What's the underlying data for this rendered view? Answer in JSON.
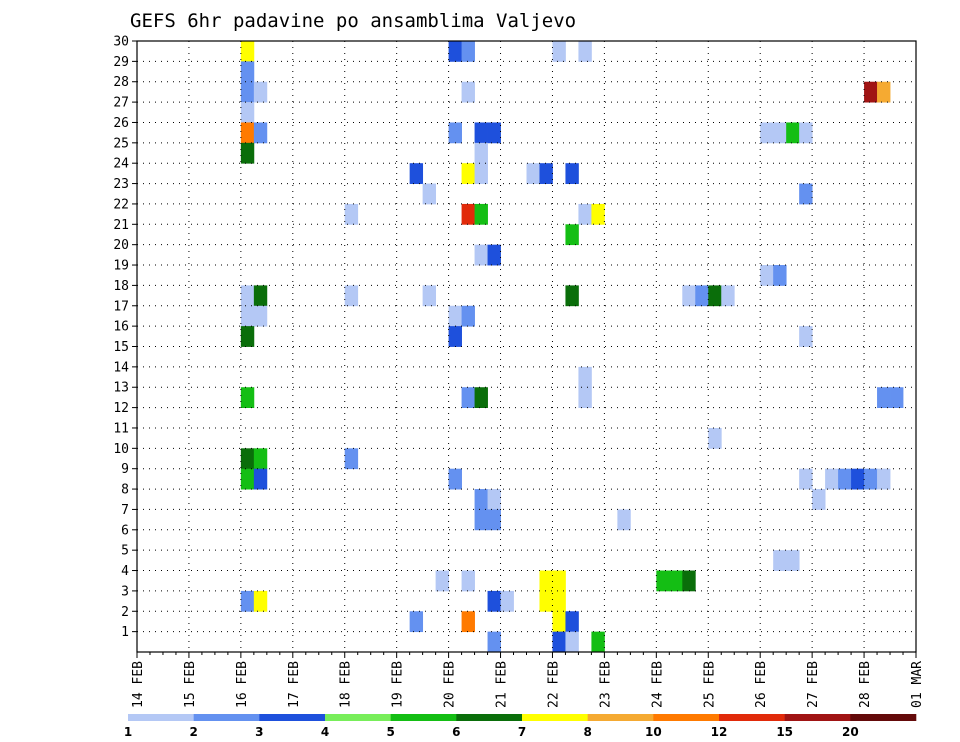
{
  "chart_data": {
    "type": "heatmap",
    "title": "GEFS 6hr padavine po ansamblima Valjevo",
    "xlabel": "",
    "ylabel": "",
    "x_tick_labels": [
      "14 FEB",
      "15 FEB",
      "16 FEB",
      "17 FEB",
      "18 FEB",
      "19 FEB",
      "20 FEB",
      "21 FEB",
      "22 FEB",
      "23 FEB",
      "24 FEB",
      "25 FEB",
      "26 FEB",
      "27 FEB",
      "28 FEB",
      "01 MAR"
    ],
    "y_tick_labels": [
      "1",
      "2",
      "3",
      "4",
      "5",
      "6",
      "7",
      "8",
      "9",
      "10",
      "11",
      "12",
      "13",
      "14",
      "15",
      "16",
      "17",
      "18",
      "19",
      "20",
      "21",
      "22",
      "23",
      "24",
      "25",
      "26",
      "27",
      "28",
      "29",
      "30"
    ],
    "x_unit": "days since 14 FEB, 6-hour steps",
    "xlim": [
      0,
      15
    ],
    "ylim": [
      0,
      30
    ],
    "grid": true,
    "legend": {
      "placement": "bottom",
      "labels": [
        "1",
        "2",
        "3",
        "4",
        "5",
        "6",
        "7",
        "8",
        "10",
        "12",
        "15",
        "20"
      ],
      "colors": [
        "#b4c8f5",
        "#6491f0",
        "#1e50dc",
        "#78ee5a",
        "#14be14",
        "#0a6e0a",
        "#ffff00",
        "#f5aa32",
        "#ff7a00",
        "#e12a0a",
        "#a01414",
        "#640a0a"
      ]
    },
    "cells": [
      {
        "x": 2.0,
        "y": 30,
        "v": 7
      },
      {
        "x": 6.0,
        "y": 30,
        "v": 3
      },
      {
        "x": 6.25,
        "y": 30,
        "v": 2
      },
      {
        "x": 8.0,
        "y": 30,
        "v": 1
      },
      {
        "x": 8.5,
        "y": 30,
        "v": 1
      },
      {
        "x": 2.0,
        "y": 29,
        "v": 2
      },
      {
        "x": 2.0,
        "y": 28,
        "v": 2
      },
      {
        "x": 2.25,
        "y": 28,
        "v": 1
      },
      {
        "x": 6.25,
        "y": 28,
        "v": 1
      },
      {
        "x": 14.0,
        "y": 28,
        "v": 15
      },
      {
        "x": 14.25,
        "y": 28,
        "v": 8
      },
      {
        "x": 2.0,
        "y": 27,
        "v": 1
      },
      {
        "x": 2.0,
        "y": 26,
        "v": 10
      },
      {
        "x": 2.25,
        "y": 26,
        "v": 2
      },
      {
        "x": 6.0,
        "y": 26,
        "v": 2
      },
      {
        "x": 6.5,
        "y": 26,
        "v": 3
      },
      {
        "x": 6.75,
        "y": 26,
        "v": 3
      },
      {
        "x": 12.0,
        "y": 26,
        "v": 1
      },
      {
        "x": 12.25,
        "y": 26,
        "v": 1
      },
      {
        "x": 12.5,
        "y": 26,
        "v": 5
      },
      {
        "x": 12.75,
        "y": 26,
        "v": 1
      },
      {
        "x": 2.0,
        "y": 25,
        "v": 6
      },
      {
        "x": 6.5,
        "y": 25,
        "v": 1
      },
      {
        "x": 5.25,
        "y": 24,
        "v": 3
      },
      {
        "x": 6.25,
        "y": 24,
        "v": 7
      },
      {
        "x": 6.5,
        "y": 24,
        "v": 1
      },
      {
        "x": 7.5,
        "y": 24,
        "v": 1
      },
      {
        "x": 7.75,
        "y": 24,
        "v": 3
      },
      {
        "x": 8.25,
        "y": 24,
        "v": 3
      },
      {
        "x": 5.5,
        "y": 23,
        "v": 1
      },
      {
        "x": 12.75,
        "y": 23,
        "v": 2
      },
      {
        "x": 4.0,
        "y": 22,
        "v": 1
      },
      {
        "x": 6.25,
        "y": 22,
        "v": 12
      },
      {
        "x": 6.5,
        "y": 22,
        "v": 5
      },
      {
        "x": 8.5,
        "y": 22,
        "v": 1
      },
      {
        "x": 8.75,
        "y": 22,
        "v": 7
      },
      {
        "x": 8.25,
        "y": 21,
        "v": 5
      },
      {
        "x": 6.5,
        "y": 20,
        "v": 1
      },
      {
        "x": 6.75,
        "y": 20,
        "v": 3
      },
      {
        "x": 12.0,
        "y": 19,
        "v": 1
      },
      {
        "x": 12.25,
        "y": 19,
        "v": 2
      },
      {
        "x": 2.0,
        "y": 18,
        "v": 1
      },
      {
        "x": 2.25,
        "y": 18,
        "v": 6
      },
      {
        "x": 4.0,
        "y": 18,
        "v": 1
      },
      {
        "x": 5.5,
        "y": 18,
        "v": 1
      },
      {
        "x": 8.25,
        "y": 18,
        "v": 6
      },
      {
        "x": 10.5,
        "y": 18,
        "v": 1
      },
      {
        "x": 10.75,
        "y": 18,
        "v": 2
      },
      {
        "x": 11.0,
        "y": 18,
        "v": 6
      },
      {
        "x": 11.25,
        "y": 18,
        "v": 1
      },
      {
        "x": 2.0,
        "y": 17,
        "v": 1
      },
      {
        "x": 2.25,
        "y": 17,
        "v": 1
      },
      {
        "x": 6.0,
        "y": 17,
        "v": 1
      },
      {
        "x": 6.25,
        "y": 17,
        "v": 2
      },
      {
        "x": 2.0,
        "y": 16,
        "v": 6
      },
      {
        "x": 6.0,
        "y": 16,
        "v": 3
      },
      {
        "x": 12.75,
        "y": 16,
        "v": 1
      },
      {
        "x": 8.5,
        "y": 14,
        "v": 1
      },
      {
        "x": 2.0,
        "y": 13,
        "v": 5
      },
      {
        "x": 6.25,
        "y": 13,
        "v": 2
      },
      {
        "x": 6.5,
        "y": 13,
        "v": 6
      },
      {
        "x": 8.5,
        "y": 13,
        "v": 1
      },
      {
        "x": 14.25,
        "y": 13,
        "v": 2
      },
      {
        "x": 14.5,
        "y": 13,
        "v": 2
      },
      {
        "x": 11.0,
        "y": 11,
        "v": 1
      },
      {
        "x": 2.0,
        "y": 10,
        "v": 6
      },
      {
        "x": 2.25,
        "y": 10,
        "v": 5
      },
      {
        "x": 4.0,
        "y": 10,
        "v": 2
      },
      {
        "x": 2.0,
        "y": 9,
        "v": 5
      },
      {
        "x": 2.25,
        "y": 9,
        "v": 3
      },
      {
        "x": 6.0,
        "y": 9,
        "v": 2
      },
      {
        "x": 12.75,
        "y": 9,
        "v": 1
      },
      {
        "x": 13.25,
        "y": 9,
        "v": 1
      },
      {
        "x": 13.5,
        "y": 9,
        "v": 2
      },
      {
        "x": 13.75,
        "y": 9,
        "v": 3
      },
      {
        "x": 14.0,
        "y": 9,
        "v": 2
      },
      {
        "x": 14.25,
        "y": 9,
        "v": 1
      },
      {
        "x": 6.5,
        "y": 8,
        "v": 2
      },
      {
        "x": 6.75,
        "y": 8,
        "v": 1
      },
      {
        "x": 13.0,
        "y": 8,
        "v": 1
      },
      {
        "x": 6.5,
        "y": 7,
        "v": 2
      },
      {
        "x": 6.75,
        "y": 7,
        "v": 2
      },
      {
        "x": 9.25,
        "y": 7,
        "v": 1
      },
      {
        "x": 12.25,
        "y": 5,
        "v": 1
      },
      {
        "x": 12.5,
        "y": 5,
        "v": 1
      },
      {
        "x": 5.75,
        "y": 4,
        "v": 1
      },
      {
        "x": 6.25,
        "y": 4,
        "v": 1
      },
      {
        "x": 7.75,
        "y": 4,
        "v": 7
      },
      {
        "x": 8.0,
        "y": 4,
        "v": 7
      },
      {
        "x": 10.0,
        "y": 4,
        "v": 5
      },
      {
        "x": 10.25,
        "y": 4,
        "v": 5
      },
      {
        "x": 10.5,
        "y": 4,
        "v": 6
      },
      {
        "x": 7.75,
        "y": 3,
        "v": 7
      },
      {
        "x": 8.0,
        "y": 3,
        "v": 7
      },
      {
        "x": 2.0,
        "y": 3,
        "v": 2
      },
      {
        "x": 2.25,
        "y": 3,
        "v": 7
      },
      {
        "x": 6.75,
        "y": 3,
        "v": 3
      },
      {
        "x": 7.0,
        "y": 3,
        "v": 1
      },
      {
        "x": 5.25,
        "y": 2,
        "v": 2
      },
      {
        "x": 6.25,
        "y": 2,
        "v": 10
      },
      {
        "x": 8.0,
        "y": 2,
        "v": 7
      },
      {
        "x": 8.25,
        "y": 2,
        "v": 3
      },
      {
        "x": 6.75,
        "y": 1,
        "v": 2
      },
      {
        "x": 8.0,
        "y": 1,
        "v": 3
      },
      {
        "x": 8.25,
        "y": 1,
        "v": 1
      },
      {
        "x": 8.75,
        "y": 1,
        "v": 5
      }
    ]
  }
}
